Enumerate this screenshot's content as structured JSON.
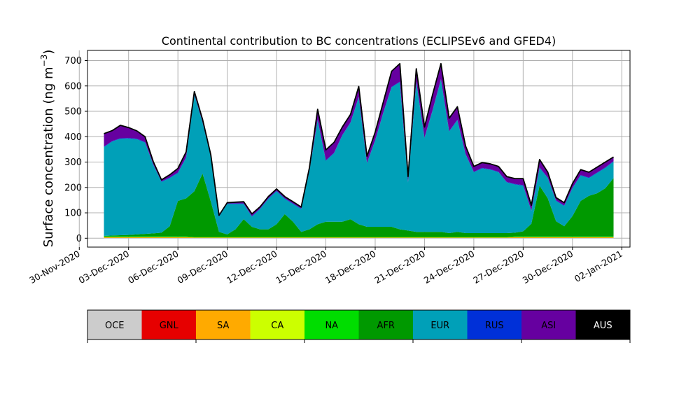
{
  "chart_data": {
    "type": "area",
    "stacked": true,
    "title": "Continental contribution to BC concentrations (ECLIPSEv6 and GFED4)",
    "ylabel": "Surface concentration (ng m",
    "ylabel_unit_exponent": "−3",
    "ylabel_close": ")",
    "xlabel": "",
    "grid": true,
    "ylim": [
      -35,
      740
    ],
    "xlim": [
      "2020-11-30T12:00",
      "2021-01-02T12:00"
    ],
    "y_ticks": [
      0,
      100,
      200,
      300,
      400,
      500,
      600,
      700
    ],
    "x_tick_labels": [
      "30-Nov-2020",
      "03-Dec-2020",
      "06-Dec-2020",
      "09-Dec-2020",
      "12-Dec-2020",
      "15-Dec-2020",
      "18-Dec-2020",
      "21-Dec-2020",
      "24-Dec-2020",
      "27-Dec-2020",
      "30-Dec-2020",
      "02-Jan-2021"
    ],
    "x_ticks": [
      "2020-11-30",
      "2020-12-03",
      "2020-12-06",
      "2020-12-09",
      "2020-12-12",
      "2020-12-15",
      "2020-12-18",
      "2020-12-21",
      "2020-12-24",
      "2020-12-27",
      "2020-12-30",
      "2021-01-02"
    ],
    "x": [
      "2020-12-01T12:00",
      "2020-12-02T00:00",
      "2020-12-02T12:00",
      "2020-12-03T00:00",
      "2020-12-03T12:00",
      "2020-12-04T00:00",
      "2020-12-04T12:00",
      "2020-12-05T00:00",
      "2020-12-05T12:00",
      "2020-12-06T00:00",
      "2020-12-06T12:00",
      "2020-12-07T00:00",
      "2020-12-07T12:00",
      "2020-12-08T00:00",
      "2020-12-08T12:00",
      "2020-12-09T00:00",
      "2020-12-09T12:00",
      "2020-12-10T00:00",
      "2020-12-10T12:00",
      "2020-12-11T00:00",
      "2020-12-11T12:00",
      "2020-12-12T00:00",
      "2020-12-12T12:00",
      "2020-12-13T00:00",
      "2020-12-13T12:00",
      "2020-12-14T00:00",
      "2020-12-14T12:00",
      "2020-12-15T00:00",
      "2020-12-15T12:00",
      "2020-12-16T00:00",
      "2020-12-16T12:00",
      "2020-12-17T00:00",
      "2020-12-17T12:00",
      "2020-12-18T00:00",
      "2020-12-18T12:00",
      "2020-12-19T00:00",
      "2020-12-19T12:00",
      "2020-12-20T00:00",
      "2020-12-20T12:00",
      "2020-12-21T00:00",
      "2020-12-21T12:00",
      "2020-12-22T00:00",
      "2020-12-22T12:00",
      "2020-12-23T00:00",
      "2020-12-23T12:00",
      "2020-12-24T00:00",
      "2020-12-24T12:00",
      "2020-12-25T00:00",
      "2020-12-25T12:00",
      "2020-12-26T00:00",
      "2020-12-26T12:00",
      "2020-12-27T00:00",
      "2020-12-27T12:00",
      "2020-12-28T00:00",
      "2020-12-28T12:00",
      "2020-12-29T00:00",
      "2020-12-29T12:00",
      "2020-12-30T00:00",
      "2020-12-30T12:00",
      "2020-12-31T00:00",
      "2020-12-31T12:00",
      "2021-01-01T00:00",
      "2021-01-01T12:00"
    ],
    "series": [
      {
        "name": "OCE",
        "color": "#cccccc",
        "values": [
          1,
          1,
          1,
          1,
          1,
          1,
          1,
          1,
          1,
          1,
          1,
          1,
          1,
          1,
          1,
          1,
          1,
          1,
          1,
          1,
          1,
          1,
          1,
          1,
          1,
          1,
          1,
          1,
          1,
          1,
          1,
          1,
          1,
          1,
          1,
          1,
          1,
          1,
          1,
          1,
          1,
          1,
          1,
          1,
          1,
          1,
          1,
          1,
          1,
          1,
          1,
          1,
          1,
          1,
          1,
          1,
          1,
          1,
          1,
          1,
          1,
          1,
          1
        ]
      },
      {
        "name": "GNL",
        "color": "#e60000",
        "values": [
          0,
          0,
          0,
          0,
          0,
          0,
          0,
          0,
          0,
          0,
          0,
          0,
          0,
          0,
          0,
          0,
          0,
          0,
          0,
          0,
          0,
          0,
          0,
          0,
          0,
          0,
          0,
          0,
          0,
          0,
          0,
          0,
          0,
          0,
          0,
          0,
          0,
          0,
          0,
          0,
          0,
          0,
          0,
          0,
          0,
          0,
          0,
          0,
          0,
          0,
          0,
          0,
          0,
          0,
          0,
          0,
          0,
          0,
          0,
          0,
          0,
          0,
          0
        ]
      },
      {
        "name": "SA",
        "color": "#ffaa00",
        "values": [
          3,
          3,
          3,
          3,
          3,
          3,
          3,
          3,
          3,
          3,
          3,
          2,
          2,
          2,
          2,
          2,
          2,
          2,
          2,
          2,
          2,
          2,
          2,
          2,
          2,
          2,
          2,
          2,
          2,
          2,
          2,
          2,
          2,
          2,
          2,
          2,
          2,
          2,
          2,
          2,
          2,
          2,
          2,
          2,
          2,
          2,
          2,
          2,
          2,
          2,
          3,
          3,
          3,
          3,
          3,
          3,
          3,
          3,
          3,
          3,
          3,
          3,
          3
        ]
      },
      {
        "name": "CA",
        "color": "#ccff00",
        "values": [
          0,
          0,
          0,
          0,
          0,
          0,
          0,
          0,
          0,
          0,
          0,
          0,
          0,
          0,
          0,
          0,
          0,
          0,
          0,
          0,
          0,
          0,
          0,
          0,
          0,
          0,
          0,
          0,
          0,
          0,
          0,
          0,
          0,
          0,
          0,
          0,
          0,
          0,
          0,
          0,
          0,
          0,
          0,
          0,
          0,
          0,
          0,
          0,
          0,
          0,
          0,
          0,
          0,
          0,
          0,
          0,
          0,
          0,
          0,
          0,
          0,
          0,
          0
        ]
      },
      {
        "name": "NA",
        "color": "#00dd00",
        "values": [
          3,
          3,
          3,
          3,
          3,
          3,
          3,
          3,
          3,
          3,
          3,
          2,
          2,
          2,
          2,
          2,
          2,
          2,
          2,
          2,
          2,
          2,
          2,
          2,
          2,
          2,
          2,
          2,
          2,
          2,
          2,
          2,
          2,
          2,
          2,
          2,
          2,
          2,
          2,
          2,
          2,
          2,
          2,
          2,
          2,
          2,
          2,
          2,
          2,
          2,
          3,
          3,
          3,
          3,
          3,
          3,
          3,
          3,
          3,
          3,
          3,
          3,
          3
        ]
      },
      {
        "name": "AFR",
        "color": "#009900",
        "values": [
          2,
          4,
          5,
          6,
          8,
          10,
          12,
          15,
          40,
          140,
          150,
          180,
          250,
          140,
          20,
          10,
          30,
          70,
          40,
          30,
          30,
          50,
          90,
          60,
          20,
          30,
          50,
          60,
          60,
          60,
          70,
          50,
          40,
          40,
          40,
          40,
          30,
          25,
          20,
          20,
          20,
          20,
          15,
          20,
          15,
          15,
          15,
          15,
          15,
          15,
          15,
          20,
          50,
          200,
          150,
          60,
          40,
          80,
          140,
          160,
          170,
          190,
          230
        ]
      },
      {
        "name": "EUR",
        "color": "#00a0b8",
        "values": [
          350,
          370,
          380,
          380,
          375,
          360,
          270,
          200,
          190,
          110,
          160,
          380,
          200,
          175,
          60,
          120,
          100,
          60,
          40,
          80,
          120,
          130,
          60,
          70,
          90,
          230,
          410,
          240,
          270,
          340,
          380,
          500,
          250,
          340,
          450,
          550,
          580,
          190,
          590,
          370,
          480,
          600,
          400,
          440,
          310,
          240,
          255,
          250,
          240,
          200,
          190,
          180,
          50,
          70,
          80,
          80,
          80,
          110,
          100,
          70,
          80,
          80,
          65
        ]
      },
      {
        "name": "RUS",
        "color": "#0030d8",
        "values": [
          2,
          2,
          2,
          2,
          2,
          2,
          2,
          2,
          2,
          2,
          2,
          2,
          2,
          2,
          2,
          2,
          2,
          2,
          2,
          2,
          2,
          2,
          2,
          2,
          2,
          2,
          2,
          2,
          2,
          2,
          2,
          2,
          2,
          2,
          2,
          2,
          2,
          2,
          2,
          2,
          2,
          2,
          2,
          2,
          2,
          2,
          2,
          2,
          2,
          2,
          2,
          2,
          2,
          2,
          2,
          2,
          2,
          2,
          2,
          2,
          2,
          2,
          2
        ]
      },
      {
        "name": "ASI",
        "color": "#6600a0",
        "values": [
          50,
          40,
          50,
          40,
          30,
          20,
          10,
          5,
          10,
          15,
          20,
          10,
          10,
          6,
          2,
          2,
          4,
          6,
          8,
          6,
          6,
          6,
          6,
          6,
          5,
          10,
          40,
          40,
          40,
          30,
          30,
          40,
          25,
          30,
          40,
          60,
          70,
          20,
          50,
          40,
          60,
          60,
          50,
          50,
          30,
          20,
          20,
          20,
          20,
          20,
          20,
          25,
          20,
          30,
          20,
          10,
          10,
          15,
          20,
          20,
          20,
          20,
          15
        ]
      },
      {
        "name": "AUS",
        "color": "#000000",
        "values": [
          1,
          1,
          1,
          1,
          1,
          1,
          1,
          1,
          1,
          1,
          1,
          1,
          1,
          1,
          1,
          1,
          1,
          1,
          1,
          1,
          1,
          1,
          1,
          1,
          1,
          1,
          1,
          1,
          1,
          1,
          1,
          1,
          1,
          1,
          1,
          1,
          1,
          1,
          1,
          1,
          1,
          1,
          1,
          1,
          1,
          1,
          1,
          1,
          1,
          1,
          1,
          1,
          1,
          1,
          1,
          1,
          1,
          1,
          1,
          1,
          1,
          1,
          1
        ]
      }
    ]
  },
  "legend": {
    "items": [
      {
        "label": "OCE",
        "color": "#cccccc"
      },
      {
        "label": "GNL",
        "color": "#e60000"
      },
      {
        "label": "SA",
        "color": "#ffaa00"
      },
      {
        "label": "CA",
        "color": "#ccff00"
      },
      {
        "label": "NA",
        "color": "#00dd00"
      },
      {
        "label": "AFR",
        "color": "#009900"
      },
      {
        "label": "EUR",
        "color": "#00a0b8"
      },
      {
        "label": "RUS",
        "color": "#0030d8"
      },
      {
        "label": "ASI",
        "color": "#6600a0"
      },
      {
        "label": "AUS",
        "color": "#000000"
      }
    ]
  }
}
